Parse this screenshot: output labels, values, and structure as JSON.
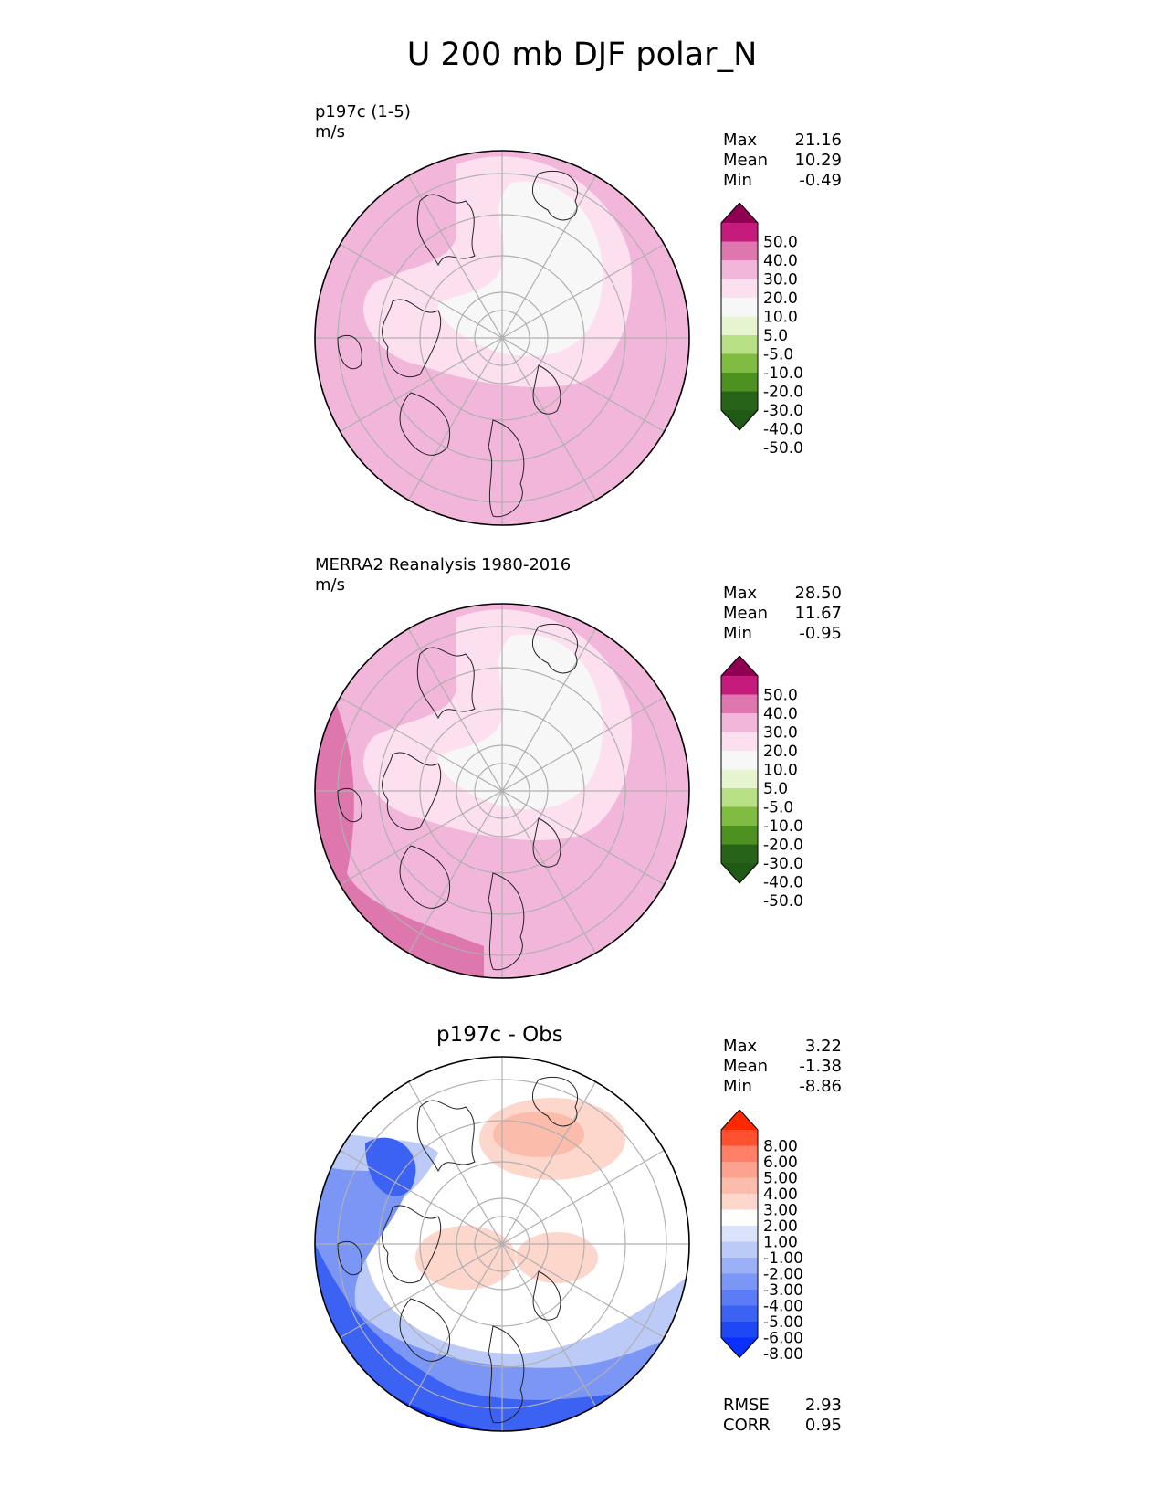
{
  "figure": {
    "title": "U 200 mb DJF polar_N"
  },
  "chart_data": [
    {
      "type": "heatmap",
      "projection": "north-polar-stereographic",
      "label_left": "p197c (1-5)",
      "units": "m/s",
      "stats": [
        {
          "name": "Max",
          "value": "21.16"
        },
        {
          "name": "Mean",
          "value": "10.29"
        },
        {
          "name": "Min",
          "value": "-0.49"
        }
      ],
      "colorbar": {
        "ticks": [
          "50.0",
          "40.0",
          "30.0",
          "20.0",
          "10.0",
          "5.0",
          "-5.0",
          "-10.0",
          "-20.0",
          "-30.0",
          "-40.0",
          "-50.0"
        ],
        "colors": [
          "#8e0152",
          "#c51b7d",
          "#de77ae",
          "#f1b6da",
          "#fde0ef",
          "#f7f7f7",
          "#e6f5d0",
          "#b8e186",
          "#7fbc41",
          "#4d9221",
          "#276419",
          "#1f5b14"
        ]
      }
    },
    {
      "type": "heatmap",
      "projection": "north-polar-stereographic",
      "label_left": "MERRA2 Reanalysis 1980-2016",
      "units": "m/s",
      "stats": [
        {
          "name": "Max",
          "value": "28.50"
        },
        {
          "name": "Mean",
          "value": "11.67"
        },
        {
          "name": "Min",
          "value": "-0.95"
        }
      ],
      "colorbar": {
        "ticks": [
          "50.0",
          "40.0",
          "30.0",
          "20.0",
          "10.0",
          "5.0",
          "-5.0",
          "-10.0",
          "-20.0",
          "-30.0",
          "-40.0",
          "-50.0"
        ],
        "colors": [
          "#8e0152",
          "#c51b7d",
          "#de77ae",
          "#f1b6da",
          "#fde0ef",
          "#f7f7f7",
          "#e6f5d0",
          "#b8e186",
          "#7fbc41",
          "#4d9221",
          "#276419",
          "#1f5b14"
        ]
      }
    },
    {
      "type": "heatmap",
      "projection": "north-polar-stereographic",
      "title": "p197c - Obs",
      "stats": [
        {
          "name": "Max",
          "value": "3.22"
        },
        {
          "name": "Mean",
          "value": "-1.38"
        },
        {
          "name": "Min",
          "value": "-8.86"
        }
      ],
      "colorbar": {
        "ticks": [
          "8.00",
          "6.00",
          "5.00",
          "4.00",
          "3.00",
          "2.00",
          "1.00",
          "-1.00",
          "-2.00",
          "-3.00",
          "-4.00",
          "-5.00",
          "-6.00",
          "-8.00"
        ],
        "colors": [
          "#ff2800",
          "#ff5030",
          "#ff8066",
          "#fca28e",
          "#fbbcac",
          "#fdd6cc",
          "#ffffff",
          "#dbe3fb",
          "#bccaf8",
          "#9cb0f7",
          "#7c96f6",
          "#5c7cf5",
          "#3c62f4",
          "#1e48f5",
          "#0a30ff"
        ]
      },
      "metrics": [
        {
          "name": "RMSE",
          "value": "2.93"
        },
        {
          "name": "CORR",
          "value": "0.95"
        }
      ]
    }
  ]
}
